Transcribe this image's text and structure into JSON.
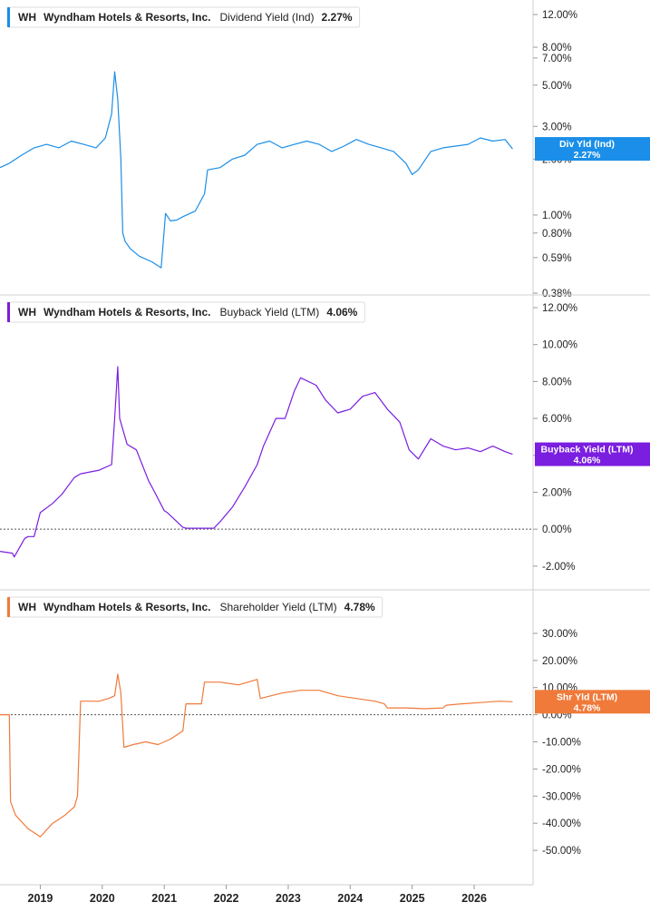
{
  "chart_data": [
    {
      "type": "line",
      "ticker": "WH",
      "company": "Wyndham Hotels & Resorts, Inc.",
      "metric": "Dividend Yield (Ind)",
      "last_value_text": "2.27%",
      "flag_label": "Div Yld (Ind)",
      "flag_value": "2.27%",
      "color": "#1a8ee8",
      "scale": "log",
      "ylim": [
        0.38,
        12
      ],
      "yticks": [
        0.38,
        0.59,
        0.8,
        1.0,
        2.0,
        3.0,
        5.0,
        7.0,
        8.0,
        12.0
      ],
      "ytick_labels": [
        "0.38%",
        "0.59%",
        "0.80%",
        "1.00%",
        "2.00%",
        "3.00%",
        "5.00%",
        "7.00%",
        "8.00%",
        "12.00%"
      ],
      "zero_line": false,
      "series": [
        {
          "x": [
            2018.35,
            2018.5,
            2018.7,
            2018.9,
            2019.1,
            2019.3,
            2019.5,
            2019.7,
            2019.9,
            2020.05,
            2020.15,
            2020.2,
            2020.25,
            2020.3,
            2020.33,
            2020.37,
            2020.45,
            2020.6,
            2020.8,
            2020.95,
            2021.02,
            2021.1,
            2021.2,
            2021.3,
            2021.5,
            2021.65,
            2021.7,
            2021.9,
            2022.1,
            2022.3,
            2022.5,
            2022.7,
            2022.9,
            2023.1,
            2023.3,
            2023.5,
            2023.7,
            2023.9,
            2024.1,
            2024.3,
            2024.5,
            2024.7,
            2024.9,
            2025.0,
            2025.1,
            2025.3,
            2025.5,
            2025.7,
            2025.9,
            2026.1,
            2026.3,
            2026.5,
            2026.62
          ],
          "y": [
            1.8,
            1.9,
            2.1,
            2.3,
            2.4,
            2.3,
            2.5,
            2.4,
            2.3,
            2.6,
            3.5,
            5.9,
            4.2,
            2.0,
            0.8,
            0.72,
            0.66,
            0.6,
            0.56,
            0.52,
            1.02,
            0.93,
            0.94,
            0.98,
            1.05,
            1.3,
            1.75,
            1.8,
            2.0,
            2.1,
            2.4,
            2.5,
            2.3,
            2.4,
            2.5,
            2.4,
            2.2,
            2.35,
            2.55,
            2.4,
            2.3,
            2.2,
            1.9,
            1.65,
            1.75,
            2.2,
            2.3,
            2.35,
            2.4,
            2.6,
            2.5,
            2.55,
            2.27
          ]
        }
      ]
    },
    {
      "type": "line",
      "ticker": "WH",
      "company": "Wyndham Hotels & Resorts, Inc.",
      "metric": "Buyback Yield (LTM)",
      "last_value_text": "4.06%",
      "flag_label": "Buyback Yield (LTM)",
      "flag_value": "4.06%",
      "color": "#7a1ee0",
      "scale": "linear",
      "ylim": [
        -2.4,
        12
      ],
      "yticks": [
        -2,
        0,
        2,
        4,
        6,
        8,
        10,
        12
      ],
      "ytick_labels": [
        "-2.00%",
        "0.00%",
        "2.00%",
        "4.00%",
        "6.00%",
        "8.00%",
        "10.00%",
        "12.00%"
      ],
      "zero_line": true,
      "series": [
        {
          "x": [
            2018.35,
            2018.55,
            2018.58,
            2018.75,
            2018.8,
            2018.9,
            2019.0,
            2019.2,
            2019.35,
            2019.55,
            2019.65,
            2019.95,
            2020.15,
            2020.2,
            2020.25,
            2020.28,
            2020.4,
            2020.55,
            2020.75,
            2020.8,
            2021.0,
            2021.05,
            2021.3,
            2021.35,
            2021.8,
            2021.9,
            2022.1,
            2022.3,
            2022.5,
            2022.6,
            2022.8,
            2022.95,
            2023.1,
            2023.2,
            2023.45,
            2023.6,
            2023.8,
            2024.0,
            2024.2,
            2024.4,
            2024.6,
            2024.8,
            2024.95,
            2025.1,
            2025.3,
            2025.5,
            2025.7,
            2025.9,
            2026.1,
            2026.3,
            2026.5,
            2026.62
          ],
          "y": [
            -1.2,
            -1.3,
            -1.5,
            -0.5,
            -0.4,
            -0.4,
            0.9,
            1.4,
            1.9,
            2.8,
            3.0,
            3.2,
            3.5,
            6.0,
            8.8,
            6.0,
            4.6,
            4.3,
            2.6,
            2.3,
            1.0,
            0.9,
            0.1,
            0.05,
            0.05,
            0.4,
            1.2,
            2.3,
            3.5,
            4.5,
            6.0,
            6.0,
            7.5,
            8.2,
            7.8,
            7.0,
            6.3,
            6.5,
            7.2,
            7.4,
            6.5,
            5.8,
            4.3,
            3.8,
            4.9,
            4.5,
            4.3,
            4.4,
            4.2,
            4.5,
            4.2,
            4.06
          ]
        }
      ]
    },
    {
      "type": "line",
      "ticker": "WH",
      "company": "Wyndham Hotels & Resorts, Inc.",
      "metric": "Shareholder Yield (LTM)",
      "last_value_text": "4.78%",
      "flag_label": "Shr Yld (LTM)",
      "flag_value": "4.78%",
      "color": "#f07a3a",
      "scale": "linear",
      "ylim": [
        -55,
        36
      ],
      "yticks": [
        -50,
        -40,
        -30,
        -20,
        -10,
        0,
        10,
        20,
        30
      ],
      "ytick_labels": [
        "-50.00%",
        "-40.00%",
        "-30.00%",
        "-20.00%",
        "-10.00%",
        "0.00%",
        "10.00%",
        "20.00%",
        "30.00%"
      ],
      "zero_line": true,
      "series": [
        {
          "x": [
            2018.35,
            2018.5,
            2018.52,
            2018.6,
            2018.8,
            2019.0,
            2019.2,
            2019.4,
            2019.55,
            2019.6,
            2019.65,
            2019.95,
            2020.1,
            2020.2,
            2020.25,
            2020.3,
            2020.35,
            2020.5,
            2020.7,
            2020.9,
            2021.1,
            2021.3,
            2021.35,
            2021.6,
            2021.65,
            2021.9,
            2022.2,
            2022.5,
            2022.55,
            2022.9,
            2023.2,
            2023.5,
            2023.8,
            2024.1,
            2024.4,
            2024.55,
            2024.6,
            2024.9,
            2025.2,
            2025.5,
            2025.55,
            2025.8,
            2026.1,
            2026.4,
            2026.62
          ],
          "y": [
            0,
            0,
            -32,
            -37,
            -42,
            -45,
            -40,
            -37,
            -34,
            -30,
            5,
            5,
            6,
            7,
            15,
            8,
            -12,
            -11,
            -10,
            -11,
            -9,
            -6,
            4,
            4,
            12,
            12,
            11,
            13,
            6,
            8,
            9,
            9,
            7,
            6,
            5,
            4,
            2.5,
            2.5,
            2.2,
            2.5,
            3.5,
            4,
            4.5,
            5,
            4.78
          ]
        }
      ]
    }
  ],
  "x_axis": {
    "range": [
      2018.35,
      2026.95
    ],
    "ticks": [
      2019,
      2020,
      2021,
      2022,
      2023,
      2024,
      2025,
      2026
    ],
    "tick_labels": [
      "2019",
      "2020",
      "2021",
      "2022",
      "2023",
      "2024",
      "2025",
      "2026"
    ]
  }
}
